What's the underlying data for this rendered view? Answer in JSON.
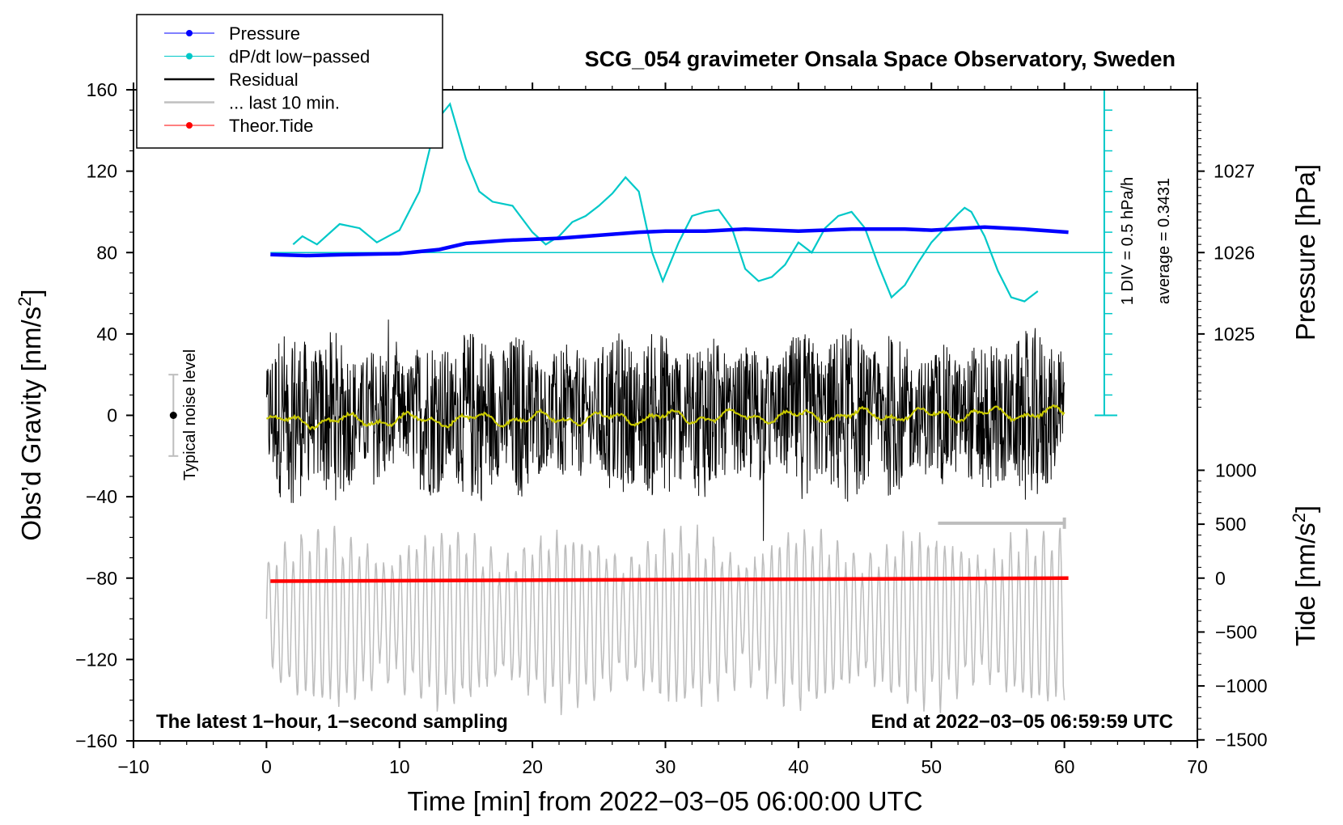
{
  "chart_data": {
    "type": "line",
    "title": "SCG_054 gravimeter Onsala Space Observatory, Sweden",
    "xlabel": "Time [min] from 2022−03−05 06:00:00 UTC",
    "ylabel": "Obs’d Gravity [nm/s",
    "ylabel_sup": "2",
    "ylabel_end": "]",
    "xlim": [
      -10,
      70
    ],
    "ylim": [
      -160,
      160
    ],
    "x_ticks": [
      -10,
      0,
      10,
      20,
      30,
      40,
      50,
      60,
      70
    ],
    "x_tick_labels": [
      "−10",
      "0",
      "10",
      "20",
      "30",
      "40",
      "50",
      "60",
      "70"
    ],
    "y_ticks": [
      -160,
      -120,
      -80,
      -40,
      0,
      40,
      80,
      120,
      160
    ],
    "y_tick_labels": [
      "−160",
      "−120",
      "−80",
      "−40",
      "0",
      "40",
      "80",
      "120",
      "160"
    ],
    "pressure_axis": {
      "label": "Pressure [hPa]",
      "ticks": [
        1025,
        1026,
        1027
      ],
      "tick_labels": [
        "1025",
        "1026",
        "1027"
      ],
      "gravity_equivalent": [
        40,
        80,
        120
      ]
    },
    "tide_axis": {
      "label": "Tide [nm/s",
      "label_sup": "2",
      "label_end": "]",
      "ticks": [
        1000,
        500,
        0,
        -500,
        -1000,
        -1500
      ],
      "tick_labels": [
        "1000",
        "500",
        "0",
        "−500",
        "−1000",
        "−1500"
      ]
    },
    "dpdt_scale": {
      "label1": "1 DIV = 0.5 hPa/h",
      "label2": "average = 0.3431",
      "x": 63,
      "y_range": [
        0,
        160
      ],
      "divisions": 16
    },
    "noise_bar": {
      "label": "Typical noise level",
      "x": -7,
      "y": 0,
      "half_range": 20
    },
    "last10_marker": {
      "x_start": 50.5,
      "x_end": 60,
      "y": -53
    },
    "annotations": {
      "left": "The latest 1−hour, 1−second sampling",
      "right": "End at 2022−03−05 06:59:59 UTC"
    },
    "legend": [
      {
        "name": "Pressure",
        "color": "#0000ff",
        "marker": true
      },
      {
        "name": "dP/dt low−passed",
        "color": "#00c8c8",
        "marker": true
      },
      {
        "name": "Residual",
        "color": "#000000",
        "marker": false
      },
      {
        "name": "... last 10 min.",
        "color": "#bfbfbf",
        "marker": false
      },
      {
        "name": "Theor.Tide",
        "color": "#ff0000",
        "marker": true
      }
    ],
    "series": [
      {
        "name": "Pressure",
        "color": "#0000ff",
        "x": [
          0.3,
          3,
          6,
          10,
          13,
          15,
          18,
          22,
          26,
          28,
          30,
          33,
          36,
          40,
          44,
          48,
          50,
          54,
          57,
          60.3
        ],
        "y": [
          79,
          78.5,
          79,
          79.5,
          81.5,
          84.5,
          86,
          87,
          89,
          90,
          90.5,
          90.5,
          91.5,
          90.5,
          91.5,
          91.5,
          91,
          92.5,
          91.5,
          90
        ]
      },
      {
        "name": "dP/dt low−passed",
        "color": "#00c8c8",
        "x": [
          2,
          2.7,
          3.8,
          5.5,
          7,
          8.3,
          10,
          11.5,
          12.8,
          13.8,
          15,
          16,
          17,
          18.5,
          20,
          21,
          22,
          23,
          24,
          25,
          26,
          27,
          28,
          29,
          29.8,
          31,
          32,
          33,
          34,
          35,
          36,
          37,
          38,
          39,
          40,
          41,
          42,
          43,
          44,
          45,
          46,
          47,
          48,
          49,
          50,
          51,
          52,
          52.5,
          53,
          54,
          55,
          56,
          57,
          58
        ],
        "y": [
          84,
          88,
          84,
          94,
          92,
          85,
          91,
          110,
          145,
          153,
          126,
          110,
          105,
          103,
          90,
          84,
          88,
          95,
          98,
          103,
          109,
          117,
          110,
          80,
          66,
          85,
          98,
          100,
          101,
          92,
          72,
          66,
          68,
          74,
          85,
          80,
          92,
          98,
          100,
          92,
          74,
          58,
          64,
          75,
          85,
          92,
          99,
          102,
          100,
          88,
          71,
          58,
          56,
          61
        ]
      },
      {
        "name": "Theor.Tide",
        "color": "#ff0000",
        "x": [
          0.3,
          60.3
        ],
        "y": [
          -81.5,
          -80
        ]
      }
    ]
  }
}
